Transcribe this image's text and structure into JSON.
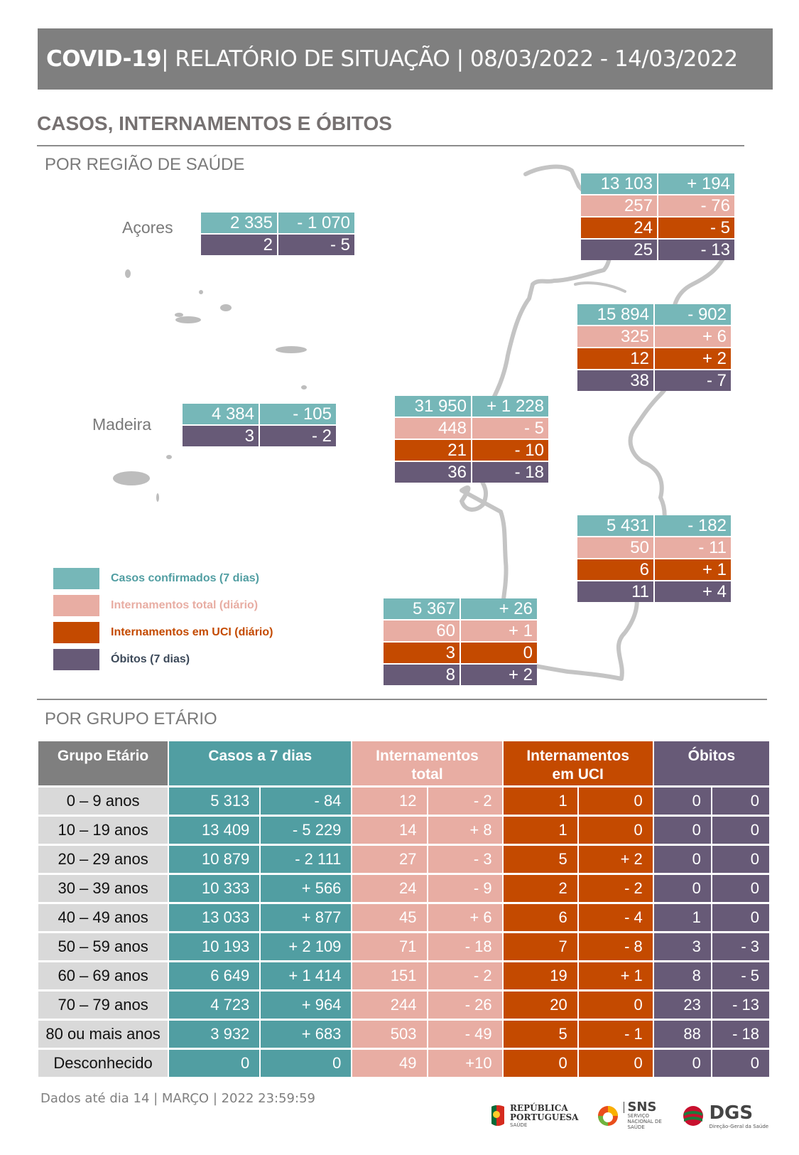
{
  "header": {
    "title_bold": "COVID-19",
    "title_rest": " | RELATÓRIO DE SITUAÇÃO | 08/03/2022 - 14/03/2022"
  },
  "section_title": "CASOS, INTERNAMENTOS E ÓBITOS",
  "region_subtitle": "POR REGIÃO DE SAÚDE",
  "age_subtitle": "POR GRUPO ETÁRIO",
  "colors": {
    "cases": "#76b7b8",
    "hosp_total": "#e8ada3",
    "hosp_icu": "#c44a00",
    "deaths": "#675a77",
    "header_gray": "#7f7f7f"
  },
  "islands": {
    "acores": {
      "label": "Açores",
      "rows": [
        [
          "2 335",
          "- 1 070"
        ],
        [
          "2",
          "- 5"
        ]
      ]
    },
    "madeira": {
      "label": "Madeira",
      "rows": [
        [
          "4 384",
          "- 105"
        ],
        [
          "3",
          "- 2"
        ]
      ]
    }
  },
  "regions": {
    "norte": {
      "rows": [
        [
          "13 103",
          "+ 194"
        ],
        [
          "257",
          "- 76"
        ],
        [
          "24",
          "- 5"
        ],
        [
          "25",
          "- 13"
        ]
      ]
    },
    "centro": {
      "rows": [
        [
          "15 894",
          "- 902"
        ],
        [
          "325",
          "+ 6"
        ],
        [
          "12",
          "+ 2"
        ],
        [
          "38",
          "- 7"
        ]
      ]
    },
    "lvt": {
      "rows": [
        [
          "31 950",
          "+ 1 228"
        ],
        [
          "448",
          "- 5"
        ],
        [
          "21",
          "- 10"
        ],
        [
          "36",
          "- 18"
        ]
      ]
    },
    "alentejo": {
      "rows": [
        [
          "5 431",
          "- 182"
        ],
        [
          "50",
          "- 11"
        ],
        [
          "6",
          "+ 1"
        ],
        [
          "11",
          "+ 4"
        ]
      ]
    },
    "algarve": {
      "rows": [
        [
          "5 367",
          "+ 26"
        ],
        [
          "60",
          "+ 1"
        ],
        [
          "3",
          "0"
        ],
        [
          "8",
          "+ 2"
        ]
      ]
    }
  },
  "legend": [
    {
      "label": "Casos confirmados (7 dias)",
      "color": "#76b7b8",
      "text_color": "#519ea2"
    },
    {
      "label": "Internamentos total (diário)",
      "color": "#e8ada3",
      "text_color": "#e8ada3"
    },
    {
      "label": "Internamentos em UCI (diário)",
      "color": "#c44a00",
      "text_color": "#c44a00"
    },
    {
      "label": "Óbitos (7 dias)",
      "color": "#675a77",
      "text_color": "#3d4a5a"
    }
  ],
  "age_table": {
    "headers": {
      "group": "Grupo Etário",
      "cases": "Casos a 7 dias",
      "hosp_total_1": "Internamentos",
      "hosp_total_2": "total",
      "hosp_icu_1": "Internamentos",
      "hosp_icu_2": "em UCI",
      "deaths": "Óbitos"
    },
    "rows": [
      {
        "group": "0 – 9 anos",
        "cases": "5 313",
        "cases_d": "- 84",
        "int": "12",
        "int_d": "- 2",
        "uci": "1",
        "uci_d": "0",
        "obi": "0",
        "obi_d": "0"
      },
      {
        "group": "10 – 19 anos",
        "cases": "13 409",
        "cases_d": "- 5 229",
        "int": "14",
        "int_d": "+ 8",
        "uci": "1",
        "uci_d": "0",
        "obi": "0",
        "obi_d": "0"
      },
      {
        "group": "20 – 29 anos",
        "cases": "10 879",
        "cases_d": "- 2 111",
        "int": "27",
        "int_d": "- 3",
        "uci": "5",
        "uci_d": "+ 2",
        "obi": "0",
        "obi_d": "0"
      },
      {
        "group": "30 – 39 anos",
        "cases": "10 333",
        "cases_d": "+ 566",
        "int": "24",
        "int_d": "- 9",
        "uci": "2",
        "uci_d": "- 2",
        "obi": "0",
        "obi_d": "0"
      },
      {
        "group": "40 – 49 anos",
        "cases": "13 033",
        "cases_d": "+ 877",
        "int": "45",
        "int_d": "+ 6",
        "uci": "6",
        "uci_d": "- 4",
        "obi": "1",
        "obi_d": "0"
      },
      {
        "group": "50 – 59 anos",
        "cases": "10 193",
        "cases_d": "+ 2 109",
        "int": "71",
        "int_d": "- 18",
        "uci": "7",
        "uci_d": "- 8",
        "obi": "3",
        "obi_d": "- 3"
      },
      {
        "group": "60 – 69 anos",
        "cases": "6 649",
        "cases_d": "+ 1 414",
        "int": "151",
        "int_d": "- 2",
        "uci": "19",
        "uci_d": "+ 1",
        "obi": "8",
        "obi_d": "- 5"
      },
      {
        "group": "70 – 79 anos",
        "cases": "4 723",
        "cases_d": "+ 964",
        "int": "244",
        "int_d": "- 26",
        "uci": "20",
        "uci_d": "0",
        "obi": "23",
        "obi_d": "- 13"
      },
      {
        "group": "80 ou mais anos",
        "cases": "3 932",
        "cases_d": "+ 683",
        "int": "503",
        "int_d": "- 49",
        "uci": "5",
        "uci_d": "- 1",
        "obi": "88",
        "obi_d": "- 18"
      },
      {
        "group": "Desconhecido",
        "cases": "0",
        "cases_d": "0",
        "int": "49",
        "int_d": "+10",
        "uci": "0",
        "uci_d": "0",
        "obi": "0",
        "obi_d": "0"
      }
    ]
  },
  "footer": {
    "note": "Dados até dia 14 | MARÇO | 2022 23:59:59",
    "logos": {
      "republica_1": "REPÚBLICA",
      "republica_2": "PORTUGUESA",
      "republica_3": "SAÚDE",
      "sns": "SNS",
      "sns_sub": "SERVIÇO NACIONAL DE SAÚDE",
      "dgs": "DGS",
      "dgs_sub": "Direção-Geral da Saúde"
    }
  }
}
